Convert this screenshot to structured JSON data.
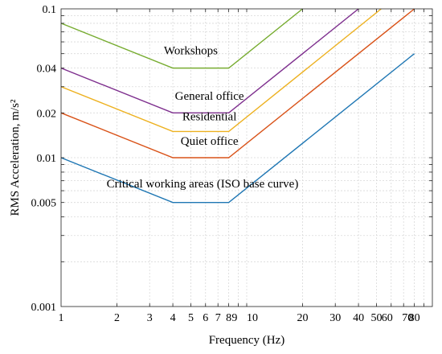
{
  "chart_data": {
    "type": "line",
    "xlabel": "Frequency (Hz)",
    "ylabel": "RMS Acceleration, m/s²",
    "xscale": "log",
    "yscale": "log",
    "xlim": [
      1,
      100
    ],
    "ylim": [
      0.001,
      0.1
    ],
    "grid": true,
    "x_ticks": [
      {
        "value": 1,
        "label": "1"
      },
      {
        "value": 2,
        "label": "2"
      },
      {
        "value": 3,
        "label": "3"
      },
      {
        "value": 4,
        "label": "4"
      },
      {
        "value": 5,
        "label": "5"
      },
      {
        "value": 6,
        "label": "6"
      },
      {
        "value": 7,
        "label": "7"
      },
      {
        "value": 8,
        "label": "8"
      },
      {
        "value": 9,
        "label": "9"
      },
      {
        "value": 10,
        "label": "10"
      },
      {
        "value": 20,
        "label": "20"
      },
      {
        "value": 30,
        "label": "30"
      },
      {
        "value": 40,
        "label": "40"
      },
      {
        "value": 50,
        "label": "50"
      },
      {
        "value": 60,
        "label": "60"
      },
      {
        "value": 70,
        "label": "70"
      },
      {
        "value": 80,
        "label": "80"
      }
    ],
    "y_ticks": [
      {
        "value": 0.001,
        "label": "0.001"
      },
      {
        "value": 0.005,
        "label": "0.005"
      },
      {
        "value": 0.01,
        "label": "0.01"
      },
      {
        "value": 0.02,
        "label": "0.02"
      },
      {
        "value": 0.04,
        "label": "0.04"
      },
      {
        "value": 0.1,
        "label": "0.1"
      }
    ],
    "series": [
      {
        "label": "Critical working areas (ISO base curve)",
        "color": "#1f77b4",
        "points": [
          [
            1,
            0.01
          ],
          [
            4,
            0.005
          ],
          [
            8,
            0.005
          ],
          [
            80,
            0.05
          ]
        ],
        "label_at": [
          4,
          0.0063
        ]
      },
      {
        "label": "Quiet office",
        "color": "#d95319",
        "points": [
          [
            1,
            0.02
          ],
          [
            4,
            0.01
          ],
          [
            8,
            0.01
          ],
          [
            80,
            0.1
          ]
        ],
        "label_at": [
          6.3,
          0.0122
        ]
      },
      {
        "label": "Residential",
        "color": "#edb120",
        "points": [
          [
            1,
            0.03
          ],
          [
            4,
            0.015
          ],
          [
            8,
            0.015
          ],
          [
            53,
            0.1
          ]
        ],
        "label_at": [
          6.3,
          0.0178
        ]
      },
      {
        "label": "General office",
        "color": "#7e2f8e",
        "points": [
          [
            1,
            0.04
          ],
          [
            4,
            0.02
          ],
          [
            8,
            0.02
          ],
          [
            40,
            0.1
          ]
        ],
        "label_at": [
          6.3,
          0.0245
        ]
      },
      {
        "label": "Workshops",
        "color": "#77ac30",
        "points": [
          [
            1,
            0.08
          ],
          [
            4,
            0.04
          ],
          [
            8,
            0.04
          ],
          [
            20,
            0.1
          ]
        ],
        "label_at": [
          5.0,
          0.0495
        ]
      }
    ]
  }
}
